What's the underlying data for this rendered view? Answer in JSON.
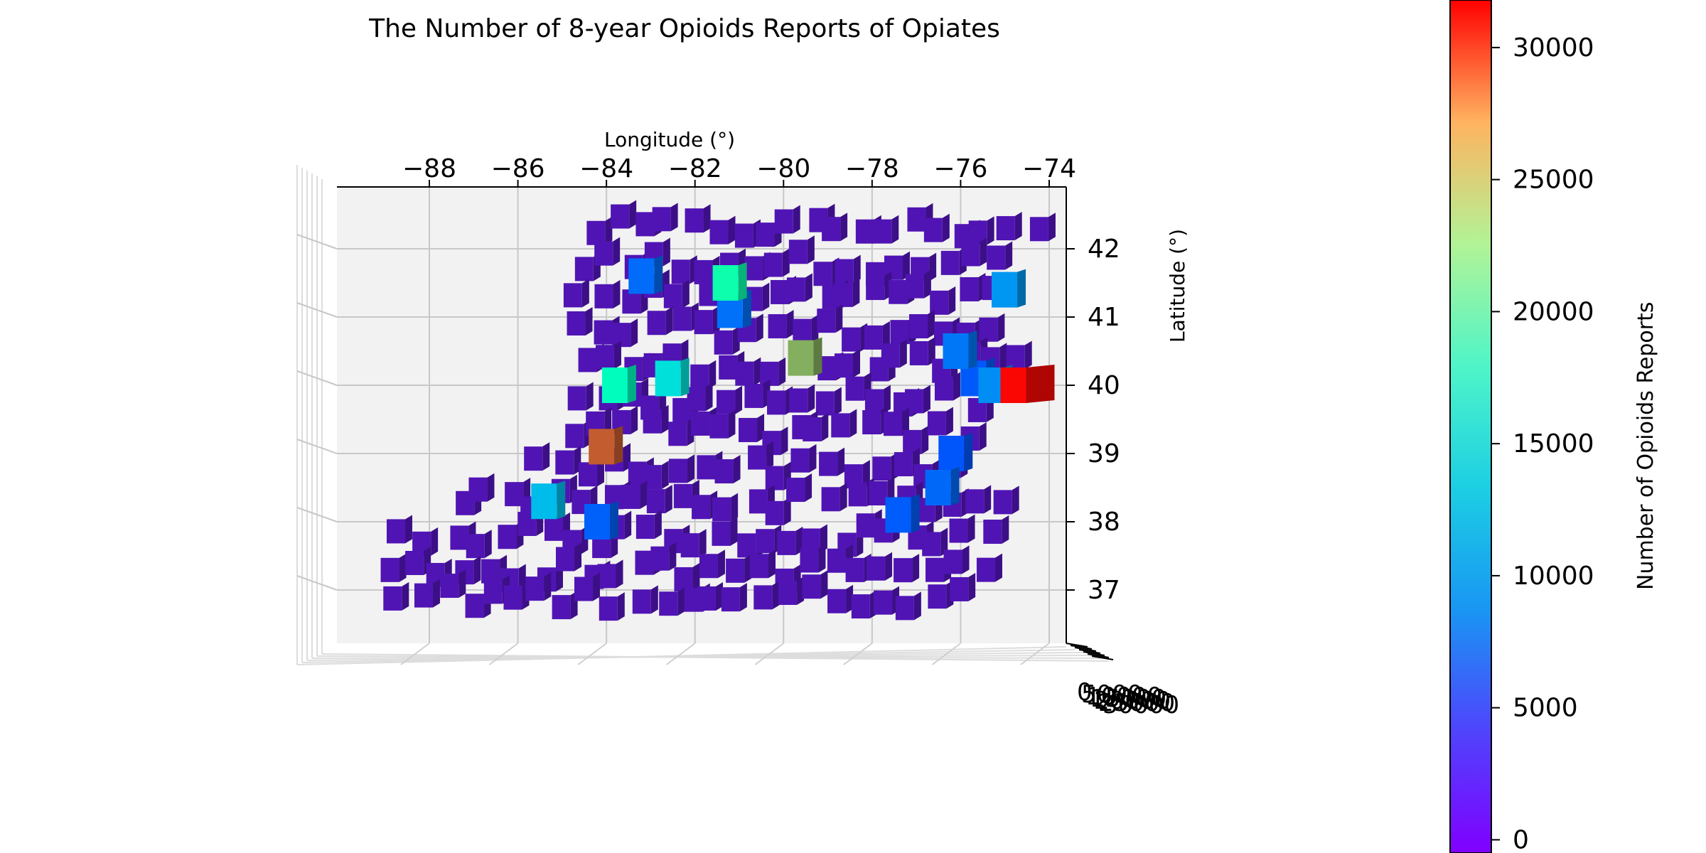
{
  "chart_data": {
    "type": "bar3d",
    "title": "The Number of 8-year Opioids Reports of Opiates",
    "xlabel": "Longitude (°)",
    "ylabel": "Latitude (°)",
    "colorbar_label": "Number of Opioids Reports",
    "colormap": "rainbow",
    "xlim": [
      -90,
      -73.5
    ],
    "ylim": [
      36.2,
      43.0
    ],
    "x_ticks": [
      -88,
      -86,
      -84,
      -82,
      -80,
      -78,
      -76,
      -74
    ],
    "x_tick_labels": [
      "−88",
      "−86",
      "−84",
      "−82",
      "−80",
      "−78",
      "−76",
      "−74"
    ],
    "y_ticks": [
      37,
      38,
      39,
      40,
      41,
      42
    ],
    "y_tick_labels": [
      "37",
      "38",
      "39",
      "40",
      "41",
      "42"
    ],
    "z_tick_labels": [
      "0",
      "5000",
      "10000",
      "15000",
      "20000",
      "25000",
      "30000"
    ],
    "colorbar_range": [
      -500,
      31800
    ],
    "colorbar_ticks": [
      0,
      5000,
      10000,
      15000,
      20000,
      25000,
      30000
    ],
    "colorbar_tick_labels": [
      "0",
      "5000",
      "10000",
      "15000",
      "20000",
      "25000",
      "30000"
    ],
    "background_default_value": 700,
    "highlighted_bars": [
      {
        "lon": -75.1,
        "lat": 40.0,
        "value": 31500
      },
      {
        "lon": -84.4,
        "lat": 39.1,
        "value": 28000
      },
      {
        "lon": -79.9,
        "lat": 40.4,
        "value": 24000
      },
      {
        "lon": -81.6,
        "lat": 41.5,
        "value": 16500
      },
      {
        "lon": -84.1,
        "lat": 40.0,
        "value": 14500
      },
      {
        "lon": -82.9,
        "lat": 40.1,
        "value": 10500
      },
      {
        "lon": -85.7,
        "lat": 38.3,
        "value": 8000
      },
      {
        "lon": -75.3,
        "lat": 41.4,
        "value": 6000
      },
      {
        "lon": -75.6,
        "lat": 40.0,
        "value": 5500
      },
      {
        "lon": -76.4,
        "lat": 40.5,
        "value": 4500
      },
      {
        "lon": -83.5,
        "lat": 41.6,
        "value": 4000
      },
      {
        "lon": -81.5,
        "lat": 41.1,
        "value": 4200
      },
      {
        "lon": -76.8,
        "lat": 38.5,
        "value": 3800
      },
      {
        "lon": -84.5,
        "lat": 38.0,
        "value": 3500
      },
      {
        "lon": -76.0,
        "lat": 40.1,
        "value": 3200
      },
      {
        "lon": -76.5,
        "lat": 39.0,
        "value": 3000
      },
      {
        "lon": -77.7,
        "lat": 38.1,
        "value": 3300
      }
    ]
  }
}
